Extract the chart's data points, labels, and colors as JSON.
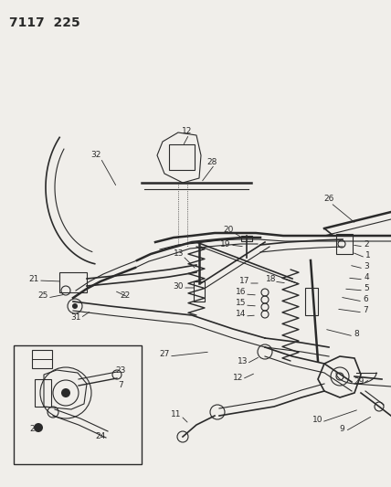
{
  "title": "7117  225",
  "background_color": "#f0eeea",
  "fig_width": 4.28,
  "fig_height": 5.33,
  "dpi": 100,
  "label_fontsize": 6.5,
  "title_fontsize": 10
}
